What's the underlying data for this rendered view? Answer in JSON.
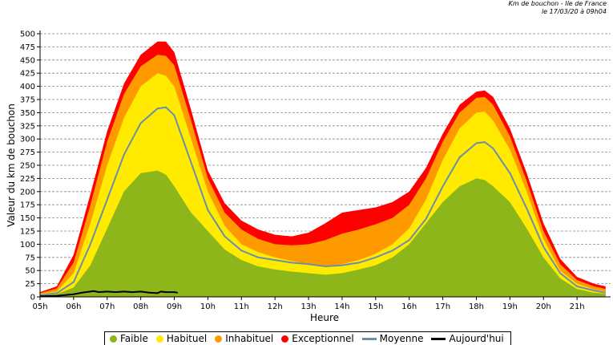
{
  "header": {
    "line1": "Km de bouchon - Ile de France",
    "line2": "le 17/03/20 à 09h04"
  },
  "chart_data": {
    "type": "area",
    "ylabel": "Valeur du  km de bouchon",
    "xlabel": "Heure",
    "xlim": [
      5,
      22
    ],
    "ylim": [
      0,
      500
    ],
    "yticks": [
      0,
      25,
      50,
      75,
      100,
      125,
      150,
      175,
      200,
      225,
      250,
      275,
      300,
      325,
      350,
      375,
      400,
      425,
      450,
      475,
      500
    ],
    "xticks": [
      {
        "v": 5,
        "label": "05h"
      },
      {
        "v": 6,
        "label": "06h"
      },
      {
        "v": 7,
        "label": "07h"
      },
      {
        "v": 8,
        "label": "08h"
      },
      {
        "v": 9,
        "label": "09h"
      },
      {
        "v": 10,
        "label": "10h"
      },
      {
        "v": 11,
        "label": "11h"
      },
      {
        "v": 12,
        "label": "12h"
      },
      {
        "v": 13,
        "label": "13h"
      },
      {
        "v": 14,
        "label": "14h"
      },
      {
        "v": 15,
        "label": "15h"
      },
      {
        "v": 16,
        "label": "16h"
      },
      {
        "v": 17,
        "label": "17h"
      },
      {
        "v": 18,
        "label": "18h"
      },
      {
        "v": 19,
        "label": "19h"
      },
      {
        "v": 20,
        "label": "20h"
      },
      {
        "v": 21,
        "label": "21h"
      }
    ],
    "grid": "horizontal-dashed",
    "legend_position": "bottom",
    "x": [
      5,
      5.5,
      6,
      6.5,
      7,
      7.5,
      8,
      8.5,
      8.75,
      9,
      9.5,
      10,
      10.5,
      11,
      11.5,
      12,
      12.5,
      13,
      13.5,
      14,
      14.5,
      15,
      15.5,
      16,
      16.5,
      17,
      17.5,
      18,
      18.25,
      18.5,
      19,
      19.5,
      20,
      20.5,
      21,
      21.5,
      21.85
    ],
    "series": [
      {
        "name": "Faible",
        "color": "#8db61a",
        "values": [
          2,
          5,
          18,
          60,
          130,
          200,
          235,
          240,
          232,
          210,
          160,
          125,
          90,
          70,
          58,
          52,
          48,
          45,
          42,
          45,
          52,
          60,
          75,
          100,
          140,
          180,
          210,
          225,
          222,
          210,
          180,
          130,
          75,
          35,
          15,
          8,
          6
        ]
      },
      {
        "name": "Habituel",
        "color": "#ffea00",
        "values": [
          5,
          10,
          45,
          140,
          250,
          340,
          400,
          425,
          420,
          400,
          300,
          200,
          135,
          100,
          85,
          75,
          68,
          62,
          58,
          62,
          70,
          82,
          100,
          130,
          185,
          260,
          320,
          350,
          352,
          335,
          280,
          200,
          110,
          50,
          25,
          14,
          10
        ]
      },
      {
        "name": "Inhabituel",
        "color": "#ff9900",
        "values": [
          7,
          16,
          65,
          175,
          295,
          385,
          438,
          460,
          458,
          440,
          335,
          225,
          160,
          128,
          110,
          100,
          98,
          100,
          108,
          120,
          128,
          138,
          150,
          175,
          225,
          295,
          350,
          378,
          380,
          365,
          305,
          220,
          125,
          62,
          32,
          20,
          15
        ]
      },
      {
        "name": "Exceptionnel",
        "color": "#ff0000",
        "values": [
          9,
          20,
          80,
          195,
          315,
          405,
          460,
          485,
          485,
          465,
          355,
          240,
          178,
          145,
          128,
          118,
          115,
          122,
          140,
          160,
          165,
          170,
          180,
          200,
          245,
          310,
          365,
          390,
          392,
          380,
          320,
          235,
          140,
          72,
          38,
          25,
          20
        ]
      },
      {
        "name": "Moyenne",
        "color": "#6b8fa8",
        "values": [
          3,
          7,
          28,
          100,
          185,
          270,
          330,
          358,
          360,
          345,
          255,
          165,
          115,
          88,
          75,
          70,
          65,
          62,
          58,
          60,
          65,
          75,
          88,
          108,
          148,
          210,
          265,
          292,
          294,
          282,
          235,
          168,
          95,
          45,
          20,
          12,
          8
        ]
      },
      {
        "name": "Aujourd'hui",
        "color": "#000000",
        "x": [
          5,
          5.5,
          6,
          6.25,
          6.5,
          6.6,
          6.75,
          7,
          7.25,
          7.5,
          7.75,
          8,
          8.25,
          8.5,
          8.6,
          8.75,
          9,
          9.1
        ],
        "values": [
          1,
          2,
          5,
          8,
          10,
          11,
          9,
          10,
          9,
          10,
          9,
          10,
          8,
          7,
          10,
          9,
          9,
          8
        ]
      }
    ]
  }
}
